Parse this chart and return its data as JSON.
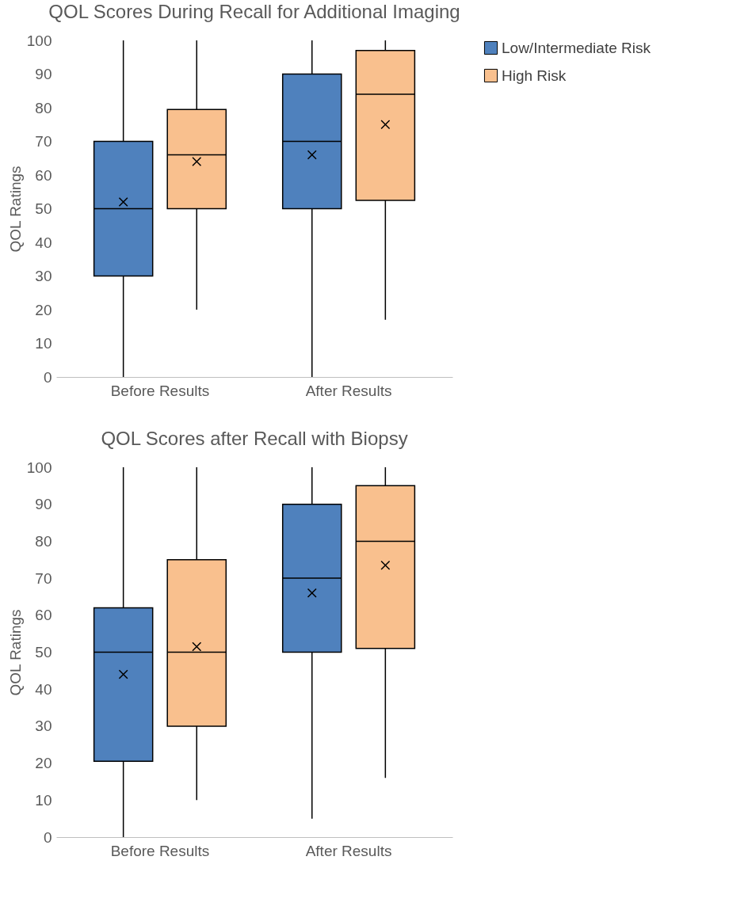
{
  "chart_data": [
    {
      "type": "box",
      "title": "QOL Scores During Recall for Additional Imaging",
      "ylabel": "QOL Ratings",
      "categories": [
        "Before Results",
        "After Results"
      ],
      "ylim": [
        0,
        100
      ],
      "yticks": [
        0,
        10,
        20,
        30,
        40,
        50,
        60,
        70,
        80,
        90,
        100
      ],
      "grid": false,
      "legend": "right",
      "series": [
        {
          "name": "Low/Intermediate Risk",
          "color": "#4f81bd",
          "boxes": [
            {
              "low": 0,
              "q1": 30,
              "median": 50,
              "q3": 70,
              "high": 100,
              "mean": 52
            },
            {
              "low": 0,
              "q1": 50,
              "median": 70,
              "q3": 90,
              "high": 100,
              "mean": 66
            }
          ]
        },
        {
          "name": "High Risk",
          "color": "#f9c08e",
          "boxes": [
            {
              "low": 20,
              "q1": 50,
              "median": 66,
              "q3": 79.5,
              "high": 100,
              "mean": 64
            },
            {
              "low": 17,
              "q1": 52.5,
              "median": 84,
              "q3": 97,
              "high": 100,
              "mean": 75
            }
          ]
        }
      ]
    },
    {
      "type": "box",
      "title": "QOL Scores after Recall with Biopsy",
      "ylabel": "QOL Ratings",
      "categories": [
        "Before Results",
        "After Results"
      ],
      "ylim": [
        0,
        100
      ],
      "yticks": [
        0,
        10,
        20,
        30,
        40,
        50,
        60,
        70,
        80,
        90,
        100
      ],
      "grid": false,
      "legend": "right",
      "series": [
        {
          "name": "Low/Intermediate Risk",
          "color": "#4f81bd",
          "boxes": [
            {
              "low": 0,
              "q1": 20.5,
              "median": 50,
              "q3": 62,
              "high": 100,
              "mean": 44
            },
            {
              "low": 5,
              "q1": 50,
              "median": 70,
              "q3": 90,
              "high": 100,
              "mean": 66
            }
          ]
        },
        {
          "name": "High Risk",
          "color": "#f9c08e",
          "boxes": [
            {
              "low": 10,
              "q1": 30,
              "median": 50,
              "q3": 75,
              "high": 100,
              "mean": 51.5
            },
            {
              "low": 16,
              "q1": 51,
              "median": 80,
              "q3": 95,
              "high": 100,
              "mean": 73.5
            }
          ]
        }
      ]
    }
  ]
}
